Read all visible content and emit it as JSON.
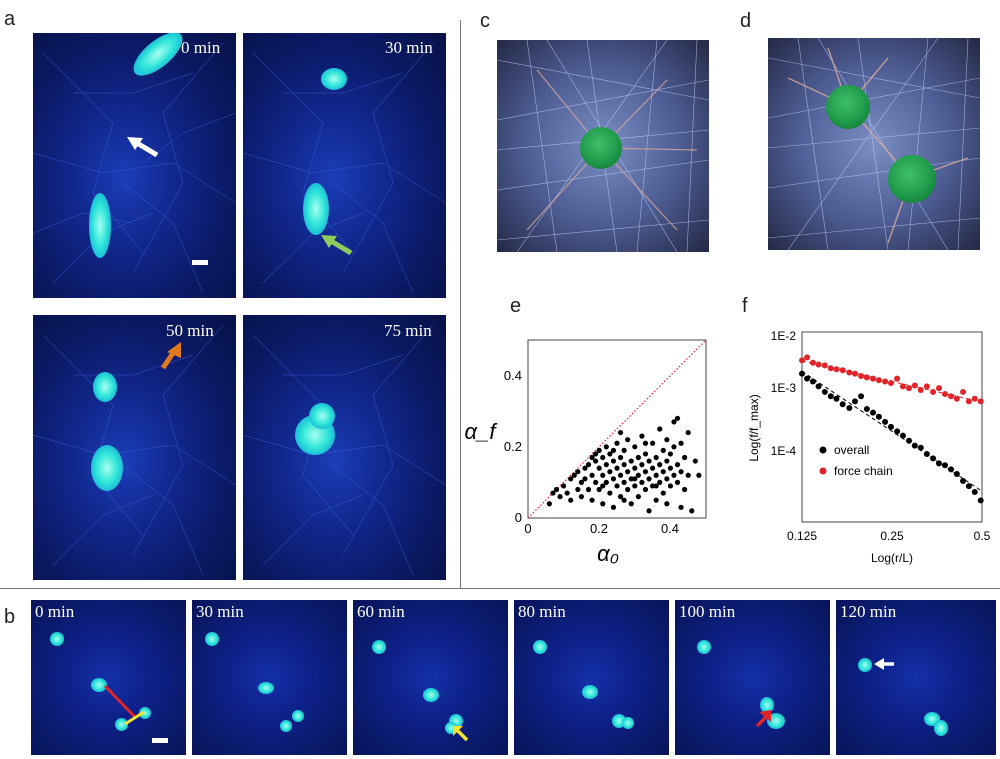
{
  "panels": {
    "a": {
      "letter": "a",
      "times": [
        "0 min",
        "30 min",
        "50 min",
        "75 min"
      ]
    },
    "b": {
      "letter": "b",
      "times": [
        "0 min",
        "30 min",
        "60 min",
        "80 min",
        "100 min",
        "120 min"
      ]
    },
    "c": {
      "letter": "c"
    },
    "d": {
      "letter": "d"
    },
    "e": {
      "letter": "e"
    },
    "f": {
      "letter": "f"
    }
  },
  "arrow_colors": {
    "white": "#ffffff",
    "green": "#8ecb5a",
    "orange": "#e07a1e",
    "yellow": "#f5e22b",
    "red": "#e0242a"
  },
  "chart_data": [
    {
      "type": "scatter",
      "panel": "e",
      "xlabel": "α₀",
      "ylabel": "α_f",
      "xlim": [
        0,
        0.5
      ],
      "ylim": [
        0,
        0.5
      ],
      "xticks": [
        "0",
        "0.2",
        "0.4"
      ],
      "yticks": [
        "0",
        "0.2",
        "0.4"
      ],
      "reference_line": {
        "style": "dotted",
        "color": "#e0242a",
        "from": [
          0,
          0
        ],
        "to": [
          0.5,
          0.5
        ]
      },
      "series": [
        {
          "color": "#000000",
          "points": [
            [
              0.06,
              0.04
            ],
            [
              0.07,
              0.07
            ],
            [
              0.08,
              0.08
            ],
            [
              0.09,
              0.06
            ],
            [
              0.1,
              0.09
            ],
            [
              0.11,
              0.07
            ],
            [
              0.12,
              0.11
            ],
            [
              0.12,
              0.05
            ],
            [
              0.13,
              0.12
            ],
            [
              0.14,
              0.08
            ],
            [
              0.14,
              0.13
            ],
            [
              0.15,
              0.1
            ],
            [
              0.15,
              0.06
            ],
            [
              0.16,
              0.14
            ],
            [
              0.16,
              0.11
            ],
            [
              0.17,
              0.15
            ],
            [
              0.17,
              0.08
            ],
            [
              0.18,
              0.17
            ],
            [
              0.18,
              0.12
            ],
            [
              0.18,
              0.05
            ],
            [
              0.19,
              0.16
            ],
            [
              0.19,
              0.1
            ],
            [
              0.2,
              0.19
            ],
            [
              0.2,
              0.14
            ],
            [
              0.2,
              0.08
            ],
            [
              0.21,
              0.12
            ],
            [
              0.21,
              0.17
            ],
            [
              0.21,
              0.04
            ],
            [
              0.22,
              0.15
            ],
            [
              0.22,
              0.1
            ],
            [
              0.22,
              0.2
            ],
            [
              0.23,
              0.13
            ],
            [
              0.23,
              0.07
            ],
            [
              0.23,
              0.18
            ],
            [
              0.24,
              0.11
            ],
            [
              0.24,
              0.16
            ],
            [
              0.24,
              0.03
            ],
            [
              0.25,
              0.14
            ],
            [
              0.25,
              0.09
            ],
            [
              0.25,
              0.21
            ],
            [
              0.26,
              0.12
            ],
            [
              0.26,
              0.17
            ],
            [
              0.26,
              0.06
            ],
            [
              0.27,
              0.15
            ],
            [
              0.27,
              0.1
            ],
            [
              0.27,
              0.19
            ],
            [
              0.28,
              0.13
            ],
            [
              0.28,
              0.08
            ],
            [
              0.28,
              0.22
            ],
            [
              0.29,
              0.11
            ],
            [
              0.29,
              0.16
            ],
            [
              0.29,
              0.04
            ],
            [
              0.3,
              0.14
            ],
            [
              0.3,
              0.09
            ],
            [
              0.3,
              0.2
            ],
            [
              0.31,
              0.12
            ],
            [
              0.31,
              0.17
            ],
            [
              0.31,
              0.06
            ],
            [
              0.32,
              0.15
            ],
            [
              0.32,
              0.1
            ],
            [
              0.32,
              0.23
            ],
            [
              0.33,
              0.13
            ],
            [
              0.33,
              0.08
            ],
            [
              0.33,
              0.18
            ],
            [
              0.34,
              0.11
            ],
            [
              0.34,
              0.16
            ],
            [
              0.34,
              0.02
            ],
            [
              0.35,
              0.14
            ],
            [
              0.35,
              0.09
            ],
            [
              0.35,
              0.21
            ],
            [
              0.36,
              0.12
            ],
            [
              0.36,
              0.17
            ],
            [
              0.36,
              0.05
            ],
            [
              0.37,
              0.15
            ],
            [
              0.37,
              0.1
            ],
            [
              0.37,
              0.25
            ],
            [
              0.38,
              0.13
            ],
            [
              0.38,
              0.19
            ],
            [
              0.38,
              0.07
            ],
            [
              0.39,
              0.16
            ],
            [
              0.39,
              0.11
            ],
            [
              0.39,
              0.22
            ],
            [
              0.4,
              0.14
            ],
            [
              0.4,
              0.09
            ],
            [
              0.4,
              0.18
            ],
            [
              0.41,
              0.12
            ],
            [
              0.41,
              0.2
            ],
            [
              0.42,
              0.15
            ],
            [
              0.42,
              0.1
            ],
            [
              0.42,
              0.28
            ],
            [
              0.43,
              0.13
            ],
            [
              0.43,
              0.21
            ],
            [
              0.44,
              0.17
            ],
            [
              0.44,
              0.08
            ],
            [
              0.45,
              0.12
            ],
            [
              0.45,
              0.24
            ],
            [
              0.46,
              0.02
            ],
            [
              0.47,
              0.16
            ],
            [
              0.48,
              0.12
            ],
            [
              0.19,
              0.18
            ],
            [
              0.21,
              0.09
            ],
            [
              0.24,
              0.19
            ],
            [
              0.27,
              0.05
            ],
            [
              0.3,
              0.11
            ],
            [
              0.33,
              0.21
            ],
            [
              0.36,
              0.09
            ],
            [
              0.39,
              0.04
            ],
            [
              0.41,
              0.27
            ],
            [
              0.43,
              0.03
            ],
            [
              0.26,
              0.24
            ]
          ]
        }
      ]
    },
    {
      "type": "scatter",
      "panel": "f",
      "log_scale": {
        "x": true,
        "y": true
      },
      "xlabel": "Log(r/L)",
      "ylabel": "Log(f/f_max)",
      "xlim": [
        0.125,
        0.5
      ],
      "ylim": [
        3e-05,
        0.01
      ],
      "xticks": [
        "0.125",
        "0.25",
        "0.5"
      ],
      "yticks": [
        "1E-2",
        "1E-3",
        "1E-4"
      ],
      "legend": {
        "placement": "bottom-center",
        "entries": [
          "overall",
          "force chain"
        ]
      },
      "series": [
        {
          "name": "overall",
          "color": "#000000",
          "fit": "dashed",
          "points": [
            [
              0.125,
              0.0028
            ],
            [
              0.13,
              0.0024
            ],
            [
              0.136,
              0.0022
            ],
            [
              0.142,
              0.0019
            ],
            [
              0.149,
              0.0016
            ],
            [
              0.156,
              0.0014
            ],
            [
              0.163,
              0.0013
            ],
            [
              0.171,
              0.0011
            ],
            [
              0.18,
              0.00098
            ],
            [
              0.188,
              0.0012
            ],
            [
              0.197,
              0.0014
            ],
            [
              0.206,
              0.00095
            ],
            [
              0.216,
              0.00085
            ],
            [
              0.226,
              0.00075
            ],
            [
              0.237,
              0.00064
            ],
            [
              0.248,
              0.00055
            ],
            [
              0.26,
              0.00048
            ],
            [
              0.272,
              0.00042
            ],
            [
              0.285,
              0.00036
            ],
            [
              0.298,
              0.00031
            ],
            [
              0.312,
              0.00029
            ],
            [
              0.327,
              0.00024
            ],
            [
              0.343,
              0.00021
            ],
            [
              0.359,
              0.00018
            ],
            [
              0.376,
              0.00017
            ],
            [
              0.394,
              0.00015
            ],
            [
              0.412,
              0.00013
            ],
            [
              0.432,
              0.000105
            ],
            [
              0.452,
              9e-05
            ],
            [
              0.473,
              7.5e-05
            ],
            [
              0.495,
              5.8e-05
            ]
          ]
        },
        {
          "name": "force chain",
          "color": "#e0242a",
          "fit": "dashed",
          "points": [
            [
              0.125,
              0.0042
            ],
            [
              0.13,
              0.0046
            ],
            [
              0.136,
              0.0039
            ],
            [
              0.142,
              0.0037
            ],
            [
              0.149,
              0.0036
            ],
            [
              0.156,
              0.0033
            ],
            [
              0.163,
              0.0032
            ],
            [
              0.171,
              0.0031
            ],
            [
              0.18,
              0.0029
            ],
            [
              0.188,
              0.0028
            ],
            [
              0.197,
              0.0026
            ],
            [
              0.206,
              0.0025
            ],
            [
              0.216,
              0.0024
            ],
            [
              0.226,
              0.0023
            ],
            [
              0.237,
              0.0022
            ],
            [
              0.248,
              0.0021
            ],
            [
              0.26,
              0.0024
            ],
            [
              0.272,
              0.0019
            ],
            [
              0.285,
              0.0018
            ],
            [
              0.298,
              0.00195
            ],
            [
              0.312,
              0.0017
            ],
            [
              0.327,
              0.0019
            ],
            [
              0.343,
              0.0016
            ],
            [
              0.359,
              0.0018
            ],
            [
              0.376,
              0.0015
            ],
            [
              0.394,
              0.0014
            ],
            [
              0.412,
              0.0013
            ],
            [
              0.432,
              0.0016
            ],
            [
              0.452,
              0.0012
            ],
            [
              0.473,
              0.0013
            ],
            [
              0.495,
              0.0012
            ]
          ]
        }
      ]
    }
  ]
}
